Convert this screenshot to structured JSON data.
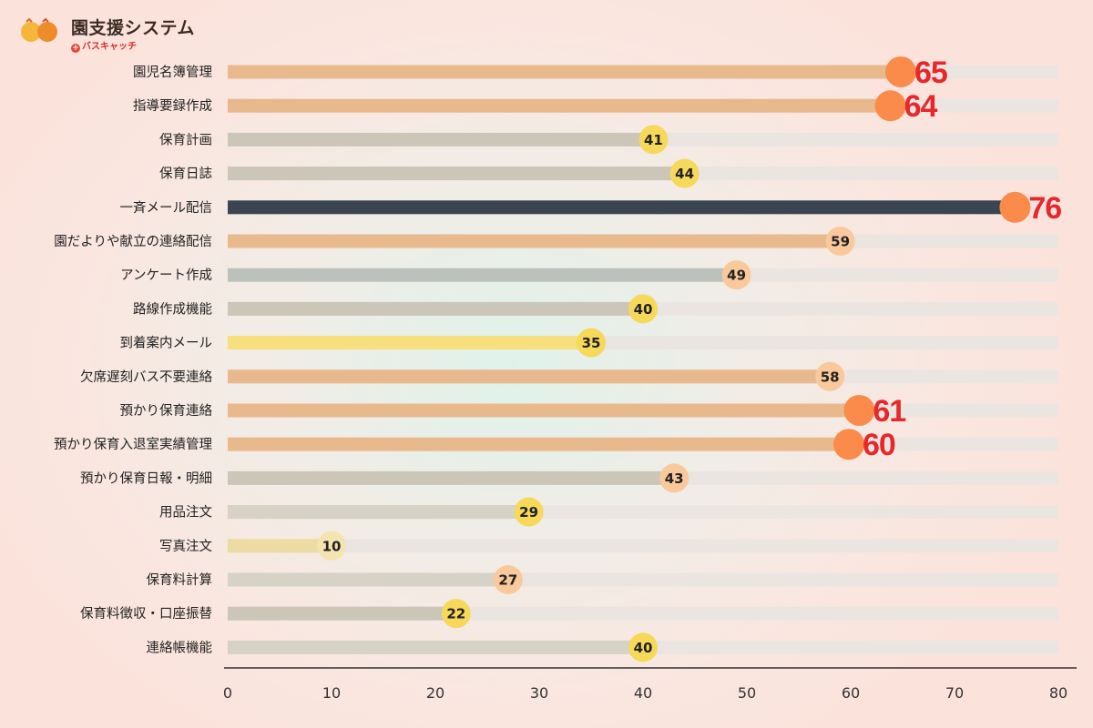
{
  "brand": {
    "title": "園支援システム",
    "subtitle": "バスキャッチ",
    "plus": "+"
  },
  "colors": {
    "track": "#ebe5e1",
    "dark_bar": "#3b4551",
    "orange_bar": "#e8b98c",
    "gray_bar": "#cbc6b7",
    "blue_gray_bar": "#bcc1bd",
    "yellow_bar": "#f6df7c",
    "pale_yellow_bar": "#ecdba2",
    "light_gray_bar": "#d6d2c6",
    "orange_dot": "#fb8b4a",
    "peach_dot": "#f9c99c",
    "yellow_dot": "#f6d85a",
    "pale_dot": "#f5e3b0",
    "red_text": "#e8272b",
    "axis": "#333333"
  },
  "chart_data": {
    "type": "bar",
    "orientation": "horizontal",
    "categories": [
      "園児名簿管理",
      "指導要録作成",
      "保育計画",
      "保育日誌",
      "一斉メール配信",
      "園だよりや献立の連絡配信",
      "アンケート作成",
      "路線作成機能",
      "到着案内メール",
      "欠席遅刻バス不要連絡",
      "預かり保育連絡",
      "預かり保育入退室実績管理",
      "預かり保育日報・明細",
      "用品注文",
      "写真注文",
      "保育料計算",
      "保育料徴収・口座振替",
      "連絡帳機能"
    ],
    "values": [
      65,
      64,
      41,
      44,
      76,
      59,
      49,
      40,
      35,
      58,
      61,
      60,
      43,
      29,
      10,
      27,
      22,
      40
    ],
    "bar_color_keys": [
      "orange_bar",
      "orange_bar",
      "gray_bar",
      "gray_bar",
      "dark_bar",
      "orange_bar",
      "blue_gray_bar",
      "gray_bar",
      "yellow_bar",
      "orange_bar",
      "orange_bar",
      "orange_bar",
      "gray_bar",
      "light_gray_bar",
      "pale_yellow_bar",
      "light_gray_bar",
      "gray_bar",
      "light_gray_bar"
    ],
    "dot_color_keys": [
      "orange_dot",
      "orange_dot",
      "yellow_dot",
      "yellow_dot",
      "orange_dot",
      "peach_dot",
      "peach_dot",
      "yellow_dot",
      "yellow_dot",
      "peach_dot",
      "orange_dot",
      "orange_dot",
      "peach_dot",
      "yellow_dot",
      "pale_dot",
      "peach_dot",
      "yellow_dot",
      "yellow_dot"
    ],
    "highlighted": [
      true,
      true,
      false,
      false,
      true,
      false,
      false,
      false,
      false,
      false,
      true,
      true,
      false,
      false,
      false,
      false,
      false,
      false
    ],
    "xlim": [
      0,
      80
    ],
    "xticks": [
      0,
      10,
      20,
      30,
      40,
      50,
      60,
      70,
      80
    ],
    "title": "",
    "xlabel": "",
    "ylabel": ""
  }
}
